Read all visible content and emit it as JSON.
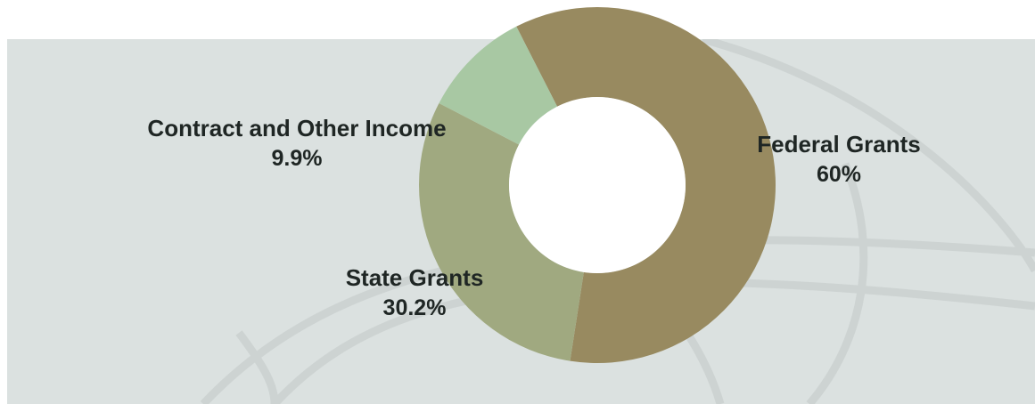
{
  "chart_data": {
    "type": "pie",
    "variant": "donut",
    "categories": [
      "Federal Grants",
      "State Grants",
      "Contract and Other Income"
    ],
    "values": [
      60,
      30.2,
      9.9
    ],
    "value_labels": [
      "60%",
      "30.2%",
      "9.9%"
    ],
    "colors": [
      "#988a60",
      "#a0a980",
      "#a8c8a3"
    ],
    "legend": "none",
    "labels_position": "beside-slices"
  },
  "colors": {
    "panel_background": "#dbe1e0",
    "label_text": "#1f2624",
    "donut_hole": "#ffffff"
  }
}
